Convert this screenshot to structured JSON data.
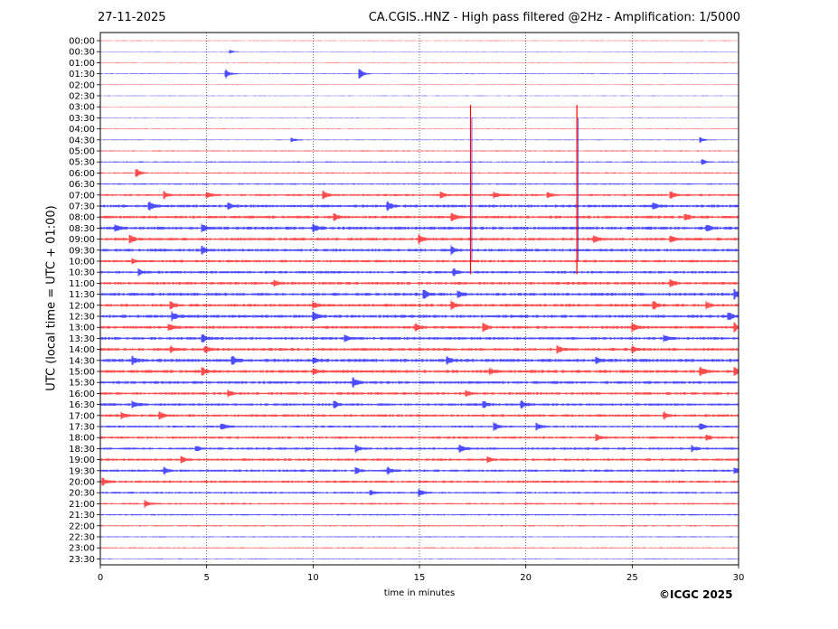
{
  "header": {
    "date": "27-11-2025",
    "title": "CA.CGIS..HNZ - High pass filtered @2Hz - Amplification: 1/5000"
  },
  "footer": {
    "copyright": "©ICGC 2025"
  },
  "chart_data": {
    "type": "line",
    "title": "CA.CGIS..HNZ - High pass filtered @2Hz - Amplification: 1/5000",
    "xlabel": "time in minutes",
    "ylabel": "UTC (local time = UTC + 01:00)",
    "xlim": [
      0,
      30
    ],
    "xticks": [
      0,
      5,
      10,
      15,
      20,
      25,
      30
    ],
    "grid_x": true,
    "trace_colors": [
      "#ff0000",
      "#0000ff"
    ],
    "rows": [
      "00:00",
      "00:30",
      "01:00",
      "01:30",
      "02:00",
      "02:30",
      "03:00",
      "03:30",
      "04:00",
      "04:30",
      "05:00",
      "05:30",
      "06:00",
      "06:30",
      "07:00",
      "07:30",
      "08:00",
      "08:30",
      "09:00",
      "09:30",
      "10:00",
      "10:30",
      "11:00",
      "11:30",
      "12:00",
      "12:30",
      "13:00",
      "13:30",
      "14:00",
      "14:30",
      "15:00",
      "15:30",
      "16:00",
      "16:30",
      "17:00",
      "17:30",
      "18:00",
      "18:30",
      "19:00",
      "19:30",
      "20:00",
      "20:30",
      "21:00",
      "21:30",
      "22:00",
      "22:30",
      "23:00",
      "23:30"
    ],
    "noise_level": [
      0.3,
      0.3,
      0.3,
      0.4,
      0.3,
      0.3,
      0.3,
      0.3,
      0.35,
      0.4,
      0.5,
      0.6,
      0.6,
      0.7,
      1.0,
      1.3,
      1.3,
      1.4,
      1.3,
      1.3,
      1.2,
      1.2,
      1.3,
      1.4,
      1.3,
      1.4,
      1.3,
      1.3,
      1.3,
      1.5,
      1.4,
      1.3,
      1.2,
      1.2,
      1.2,
      1.0,
      1.1,
      1.1,
      1.1,
      1.1,
      1.1,
      0.9,
      0.8,
      0.7,
      0.6,
      0.5,
      0.5,
      0.4
    ],
    "events": [
      {
        "row": 1,
        "minute": 6.1,
        "amp": 2
      },
      {
        "row": 3,
        "minute": 5.9,
        "amp": 5
      },
      {
        "row": 3,
        "minute": 12.2,
        "amp": 5
      },
      {
        "row": 9,
        "minute": 9.0,
        "amp": 3
      },
      {
        "row": 9,
        "minute": 28.2,
        "amp": 3
      },
      {
        "row": 11,
        "minute": 28.3,
        "amp": 3
      },
      {
        "row": 12,
        "minute": 1.7,
        "amp": 5
      },
      {
        "row": 14,
        "minute": 3.0,
        "amp": 4
      },
      {
        "row": 14,
        "minute": 5.0,
        "amp": 4
      },
      {
        "row": 14,
        "minute": 10.5,
        "amp": 4
      },
      {
        "row": 14,
        "minute": 16.0,
        "amp": 4
      },
      {
        "row": 14,
        "minute": 18.5,
        "amp": 4
      },
      {
        "row": 14,
        "minute": 21.0,
        "amp": 4
      },
      {
        "row": 14,
        "minute": 26.8,
        "amp": 5
      },
      {
        "row": 15,
        "minute": 2.3,
        "amp": 5
      },
      {
        "row": 15,
        "minute": 6.0,
        "amp": 4
      },
      {
        "row": 15,
        "minute": 13.5,
        "amp": 6
      },
      {
        "row": 15,
        "minute": 26.0,
        "amp": 4
      },
      {
        "row": 16,
        "minute": 11.0,
        "amp": 4
      },
      {
        "row": 16,
        "minute": 16.5,
        "amp": 5
      },
      {
        "row": 16,
        "minute": 27.5,
        "amp": 4
      },
      {
        "row": 17,
        "minute": 0.7,
        "amp": 4
      },
      {
        "row": 17,
        "minute": 4.8,
        "amp": 4
      },
      {
        "row": 17,
        "minute": 10.0,
        "amp": 5
      },
      {
        "row": 17,
        "minute": 28.5,
        "amp": 4
      },
      {
        "row": 18,
        "minute": 1.4,
        "amp": 5
      },
      {
        "row": 18,
        "minute": 15.0,
        "amp": 4
      },
      {
        "row": 18,
        "minute": 23.2,
        "amp": 4
      },
      {
        "row": 18,
        "minute": 26.8,
        "amp": 5
      },
      {
        "row": 19,
        "minute": 4.8,
        "amp": 4
      },
      {
        "row": 19,
        "minute": 16.5,
        "amp": 5
      },
      {
        "row": 20,
        "minute": 1.5,
        "amp": 3
      },
      {
        "row": 21,
        "minute": 1.8,
        "amp": 4
      },
      {
        "row": 21,
        "minute": 16.6,
        "amp": 4
      },
      {
        "row": 22,
        "minute": 8.2,
        "amp": 3
      },
      {
        "row": 22,
        "minute": 26.8,
        "amp": 5
      },
      {
        "row": 23,
        "minute": 15.2,
        "amp": 5
      },
      {
        "row": 23,
        "minute": 16.8,
        "amp": 5
      },
      {
        "row": 23,
        "minute": 29.8,
        "amp": 5
      },
      {
        "row": 24,
        "minute": 3.3,
        "amp": 5
      },
      {
        "row": 24,
        "minute": 10.0,
        "amp": 4
      },
      {
        "row": 24,
        "minute": 16.5,
        "amp": 5
      },
      {
        "row": 24,
        "minute": 26.0,
        "amp": 5
      },
      {
        "row": 24,
        "minute": 28.5,
        "amp": 4
      },
      {
        "row": 25,
        "minute": 3.4,
        "amp": 5
      },
      {
        "row": 25,
        "minute": 10.0,
        "amp": 6
      },
      {
        "row": 25,
        "minute": 29.5,
        "amp": 5
      },
      {
        "row": 26,
        "minute": 3.2,
        "amp": 5
      },
      {
        "row": 26,
        "minute": 14.8,
        "amp": 5
      },
      {
        "row": 26,
        "minute": 18.0,
        "amp": 5
      },
      {
        "row": 26,
        "minute": 25.0,
        "amp": 5
      },
      {
        "row": 26,
        "minute": 29.8,
        "amp": 5
      },
      {
        "row": 27,
        "minute": 4.8,
        "amp": 4
      },
      {
        "row": 27,
        "minute": 11.5,
        "amp": 4
      },
      {
        "row": 27,
        "minute": 26.5,
        "amp": 4
      },
      {
        "row": 28,
        "minute": 3.3,
        "amp": 4
      },
      {
        "row": 28,
        "minute": 4.9,
        "amp": 4
      },
      {
        "row": 28,
        "minute": 21.5,
        "amp": 4
      },
      {
        "row": 28,
        "minute": 25.0,
        "amp": 4
      },
      {
        "row": 29,
        "minute": 1.5,
        "amp": 5
      },
      {
        "row": 29,
        "minute": 6.2,
        "amp": 5
      },
      {
        "row": 29,
        "minute": 10.0,
        "amp": 4
      },
      {
        "row": 29,
        "minute": 16.3,
        "amp": 5
      },
      {
        "row": 29,
        "minute": 23.3,
        "amp": 4
      },
      {
        "row": 30,
        "minute": 4.8,
        "amp": 4
      },
      {
        "row": 30,
        "minute": 10.0,
        "amp": 4
      },
      {
        "row": 30,
        "minute": 18.3,
        "amp": 4
      },
      {
        "row": 30,
        "minute": 28.2,
        "amp": 5
      },
      {
        "row": 30,
        "minute": 29.8,
        "amp": 6
      },
      {
        "row": 31,
        "minute": 11.9,
        "amp": 5
      },
      {
        "row": 32,
        "minute": 6.0,
        "amp": 3
      },
      {
        "row": 32,
        "minute": 17.2,
        "amp": 3
      },
      {
        "row": 33,
        "minute": 1.5,
        "amp": 4
      },
      {
        "row": 33,
        "minute": 11.0,
        "amp": 4
      },
      {
        "row": 33,
        "minute": 18.0,
        "amp": 4
      },
      {
        "row": 33,
        "minute": 19.8,
        "amp": 4
      },
      {
        "row": 34,
        "minute": 1.0,
        "amp": 4
      },
      {
        "row": 34,
        "minute": 2.8,
        "amp": 4
      },
      {
        "row": 34,
        "minute": 26.5,
        "amp": 4
      },
      {
        "row": 35,
        "minute": 5.7,
        "amp": 4
      },
      {
        "row": 35,
        "minute": 18.5,
        "amp": 5
      },
      {
        "row": 35,
        "minute": 20.5,
        "amp": 4
      },
      {
        "row": 35,
        "minute": 28.2,
        "amp": 4
      },
      {
        "row": 36,
        "minute": 23.3,
        "amp": 4
      },
      {
        "row": 36,
        "minute": 28.5,
        "amp": 3
      },
      {
        "row": 37,
        "minute": 4.5,
        "amp": 3
      },
      {
        "row": 37,
        "minute": 12.0,
        "amp": 5
      },
      {
        "row": 37,
        "minute": 16.9,
        "amp": 4
      },
      {
        "row": 37,
        "minute": 27.8,
        "amp": 4
      },
      {
        "row": 38,
        "minute": 3.8,
        "amp": 4
      },
      {
        "row": 38,
        "minute": 18.2,
        "amp": 3
      },
      {
        "row": 39,
        "minute": 3.0,
        "amp": 4
      },
      {
        "row": 39,
        "minute": 12.0,
        "amp": 4
      },
      {
        "row": 39,
        "minute": 13.5,
        "amp": 4
      },
      {
        "row": 39,
        "minute": 29.8,
        "amp": 4
      },
      {
        "row": 40,
        "minute": 0.1,
        "amp": 4
      },
      {
        "row": 41,
        "minute": 12.7,
        "amp": 3
      },
      {
        "row": 41,
        "minute": 15.0,
        "amp": 4
      },
      {
        "row": 42,
        "minute": 2.1,
        "amp": 4
      }
    ],
    "spikes": [
      {
        "start_row": 6,
        "end_row": 21,
        "minute": 17.4
      },
      {
        "start_row": 6,
        "end_row": 21,
        "minute": 22.4
      }
    ]
  }
}
